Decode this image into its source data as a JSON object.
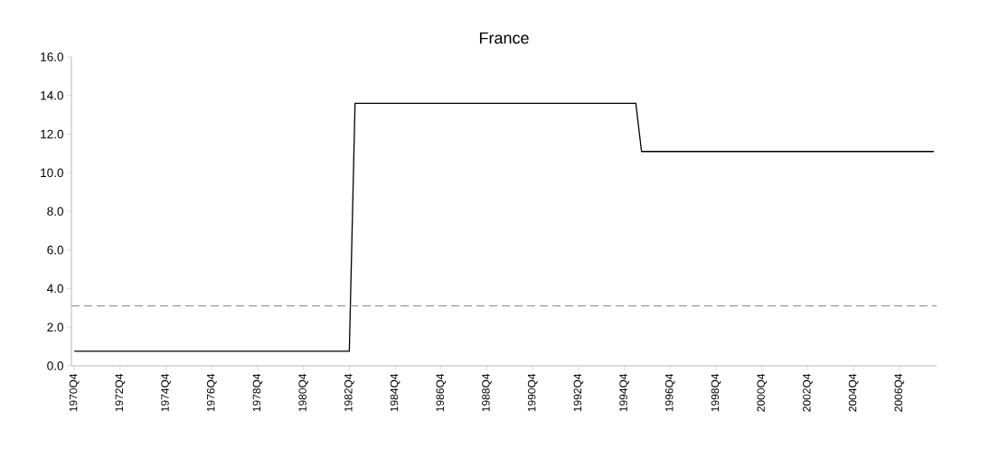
{
  "chart_data": {
    "type": "line",
    "title": "France",
    "categories": [
      "1970Q4",
      null,
      null,
      null,
      null,
      null,
      null,
      null,
      "1972Q4",
      null,
      null,
      null,
      null,
      null,
      null,
      null,
      "1974Q4",
      null,
      null,
      null,
      null,
      null,
      null,
      null,
      "1976Q4",
      null,
      null,
      null,
      null,
      null,
      null,
      null,
      "1978Q4",
      null,
      null,
      null,
      null,
      null,
      null,
      null,
      "1980Q4",
      null,
      null,
      null,
      null,
      null,
      null,
      null,
      "1982Q4",
      null,
      null,
      null,
      null,
      null,
      null,
      null,
      "1984Q4",
      null,
      null,
      null,
      null,
      null,
      null,
      null,
      "1986Q4",
      null,
      null,
      null,
      null,
      null,
      null,
      null,
      "1988Q4",
      null,
      null,
      null,
      null,
      null,
      null,
      null,
      "1990Q4",
      null,
      null,
      null,
      null,
      null,
      null,
      null,
      "1992Q4",
      null,
      null,
      null,
      null,
      null,
      null,
      null,
      "1994Q4",
      null,
      null,
      null,
      null,
      null,
      null,
      null,
      "1996Q4",
      null,
      null,
      null,
      null,
      null,
      null,
      null,
      "1998Q4",
      null,
      null,
      null,
      null,
      null,
      null,
      null,
      "2000Q4",
      null,
      null,
      null,
      null,
      null,
      null,
      null,
      "2002Q4",
      null,
      null,
      null,
      null,
      null,
      null,
      null,
      "2004Q4",
      null,
      null,
      null,
      null,
      null,
      null,
      null,
      "2006Q4",
      null,
      null,
      null,
      null,
      null,
      null
    ],
    "series": [
      {
        "color": "#000000",
        "values": [
          0.75,
          0.75,
          0.75,
          0.75,
          0.75,
          0.75,
          0.75,
          0.75,
          0.75,
          0.75,
          0.75,
          0.75,
          0.75,
          0.75,
          0.75,
          0.75,
          0.75,
          0.75,
          0.75,
          0.75,
          0.75,
          0.75,
          0.75,
          0.75,
          0.75,
          0.75,
          0.75,
          0.75,
          0.75,
          0.75,
          0.75,
          0.75,
          0.75,
          0.75,
          0.75,
          0.75,
          0.75,
          0.75,
          0.75,
          0.75,
          0.75,
          0.75,
          0.75,
          0.75,
          0.75,
          0.75,
          0.75,
          0.75,
          0.75,
          13.6,
          13.6,
          13.6,
          13.6,
          13.6,
          13.6,
          13.6,
          13.6,
          13.6,
          13.6,
          13.6,
          13.6,
          13.6,
          13.6,
          13.6,
          13.6,
          13.6,
          13.6,
          13.6,
          13.6,
          13.6,
          13.6,
          13.6,
          13.6,
          13.6,
          13.6,
          13.6,
          13.6,
          13.6,
          13.6,
          13.6,
          13.6,
          13.6,
          13.6,
          13.6,
          13.6,
          13.6,
          13.6,
          13.6,
          13.6,
          13.6,
          13.6,
          13.6,
          13.6,
          13.6,
          13.6,
          13.6,
          13.6,
          13.6,
          13.6,
          11.1,
          11.1,
          11.1,
          11.1,
          11.1,
          11.1,
          11.1,
          11.1,
          11.1,
          11.1,
          11.1,
          11.1,
          11.1,
          11.1,
          11.1,
          11.1,
          11.1,
          11.1,
          11.1,
          11.1,
          11.1,
          11.1,
          11.1,
          11.1,
          11.1,
          11.1,
          11.1,
          11.1,
          11.1,
          11.1,
          11.1,
          11.1,
          11.1,
          11.1,
          11.1,
          11.1,
          11.1,
          11.1,
          11.1,
          11.1,
          11.1,
          11.1,
          11.1,
          11.1,
          11.1,
          11.1,
          11.1,
          11.1,
          11.1,
          11.1,
          11.1,
          11.1
        ]
      }
    ],
    "ylim": [
      0,
      16
    ],
    "yticks": [
      {
        "value": 0,
        "label": "0.0"
      },
      {
        "value": 2,
        "label": "2.0"
      },
      {
        "value": 4,
        "label": "4.0"
      },
      {
        "value": 6,
        "label": "6.0"
      },
      {
        "value": 8,
        "label": "8.0"
      },
      {
        "value": 10,
        "label": "10.0"
      },
      {
        "value": 12,
        "label": "12.0"
      },
      {
        "value": 14,
        "label": "14.0"
      },
      {
        "value": 16,
        "label": "16.0"
      }
    ],
    "ref_lines": [
      {
        "axis": "y",
        "value": 3.1,
        "color": "#808080",
        "line_style": "dashed"
      }
    ],
    "grid": false
  }
}
